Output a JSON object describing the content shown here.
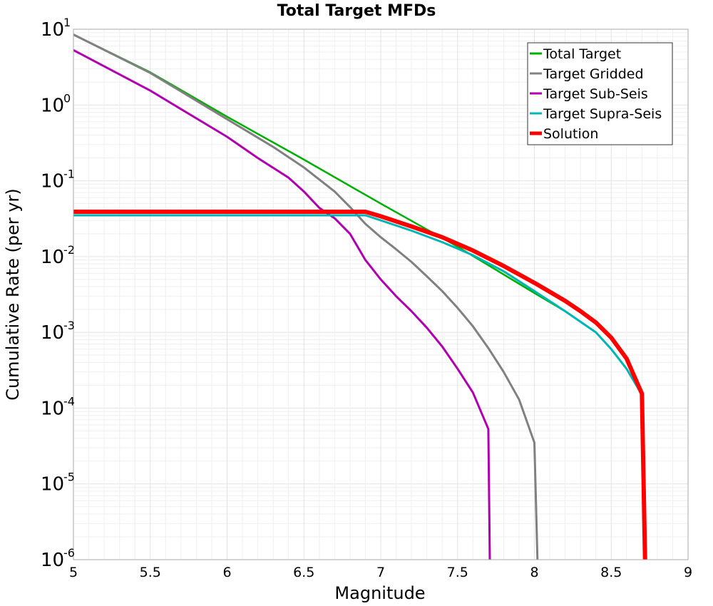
{
  "chart_data": {
    "type": "line",
    "title": "Total Target MFDs",
    "xlabel": "Magnitude",
    "ylabel": "Cumulative Rate (per yr)",
    "xlim": [
      5,
      9
    ],
    "ylim": [
      1e-06,
      10
    ],
    "yscale": "log",
    "grid": true,
    "legend_position": "top-right",
    "x_ticks": [
      "5",
      "5.5",
      "6",
      "6.5",
      "7",
      "7.5",
      "8",
      "8.5",
      "9"
    ],
    "y_ticks": [
      {
        "base": "10",
        "exp": "1",
        "value": 10
      },
      {
        "base": "10",
        "exp": "0",
        "value": 1
      },
      {
        "base": "10",
        "exp": "-1",
        "value": 0.1
      },
      {
        "base": "10",
        "exp": "-2",
        "value": 0.01
      },
      {
        "base": "10",
        "exp": "-3",
        "value": 0.001
      },
      {
        "base": "10",
        "exp": "-4",
        "value": 0.0001
      },
      {
        "base": "10",
        "exp": "-5",
        "value": 1e-05
      },
      {
        "base": "10",
        "exp": "-6",
        "value": 1e-06
      }
    ],
    "series": [
      {
        "name": "Total Target",
        "color": "#00b000",
        "width": 2.5,
        "points": [
          [
            5.0,
            8.5
          ],
          [
            5.5,
            2.7
          ],
          [
            6.0,
            0.7
          ],
          [
            6.5,
            0.19
          ],
          [
            7.0,
            0.05
          ],
          [
            7.5,
            0.0135
          ],
          [
            7.8,
            0.0058
          ],
          [
            8.0,
            0.0033
          ],
          [
            8.2,
            0.0019
          ]
        ]
      },
      {
        "name": "Target Gridded",
        "color": "#808080",
        "width": 3,
        "points": [
          [
            5.0,
            8.5
          ],
          [
            5.5,
            2.65
          ],
          [
            6.0,
            0.65
          ],
          [
            6.3,
            0.28
          ],
          [
            6.5,
            0.15
          ],
          [
            6.7,
            0.072
          ],
          [
            6.8,
            0.045
          ],
          [
            6.9,
            0.027
          ],
          [
            7.0,
            0.018
          ],
          [
            7.1,
            0.0125
          ],
          [
            7.2,
            0.0085
          ],
          [
            7.3,
            0.0055
          ],
          [
            7.4,
            0.0035
          ],
          [
            7.5,
            0.0021
          ],
          [
            7.6,
            0.0012
          ],
          [
            7.7,
            0.00062
          ],
          [
            7.8,
            0.0003
          ],
          [
            7.9,
            0.00013
          ],
          [
            8.0,
            3.5e-05
          ],
          [
            8.02,
            1e-06
          ]
        ]
      },
      {
        "name": "Target Sub-Seis",
        "color": "#b000b0",
        "width": 3,
        "points": [
          [
            5.0,
            5.3
          ],
          [
            5.5,
            1.55
          ],
          [
            6.0,
            0.38
          ],
          [
            6.2,
            0.2
          ],
          [
            6.4,
            0.11
          ],
          [
            6.5,
            0.072
          ],
          [
            6.6,
            0.044
          ],
          [
            6.7,
            0.032
          ],
          [
            6.8,
            0.02
          ],
          [
            6.9,
            0.009
          ],
          [
            7.0,
            0.005
          ],
          [
            7.1,
            0.003
          ],
          [
            7.2,
            0.0019
          ],
          [
            7.3,
            0.00115
          ],
          [
            7.4,
            0.00065
          ],
          [
            7.5,
            0.00033
          ],
          [
            7.6,
            0.00016
          ],
          [
            7.7,
            5.3e-05
          ],
          [
            7.71,
            1e-06
          ]
        ]
      },
      {
        "name": "Target Supra-Seis",
        "color": "#00b5b5",
        "width": 3,
        "points": [
          [
            5.0,
            0.035
          ],
          [
            6.9,
            0.035
          ],
          [
            7.0,
            0.03
          ],
          [
            7.2,
            0.022
          ],
          [
            7.4,
            0.0155
          ],
          [
            7.6,
            0.0104
          ],
          [
            7.8,
            0.0064
          ],
          [
            8.0,
            0.0035
          ],
          [
            8.2,
            0.0019
          ],
          [
            8.4,
            0.001
          ],
          [
            8.5,
            0.0006
          ],
          [
            8.6,
            0.00033
          ],
          [
            8.7,
            0.00015
          ]
        ]
      },
      {
        "name": "Solution",
        "color": "#ff0000",
        "width": 6,
        "points": [
          [
            5.0,
            0.039
          ],
          [
            6.9,
            0.039
          ],
          [
            7.0,
            0.034
          ],
          [
            7.2,
            0.025
          ],
          [
            7.4,
            0.018
          ],
          [
            7.6,
            0.012
          ],
          [
            7.8,
            0.0075
          ],
          [
            8.0,
            0.0045
          ],
          [
            8.2,
            0.0026
          ],
          [
            8.3,
            0.0019
          ],
          [
            8.4,
            0.00135
          ],
          [
            8.5,
            0.00085
          ],
          [
            8.6,
            0.00045
          ],
          [
            8.7,
            0.000155
          ],
          [
            8.72,
            1e-06
          ]
        ]
      }
    ]
  }
}
